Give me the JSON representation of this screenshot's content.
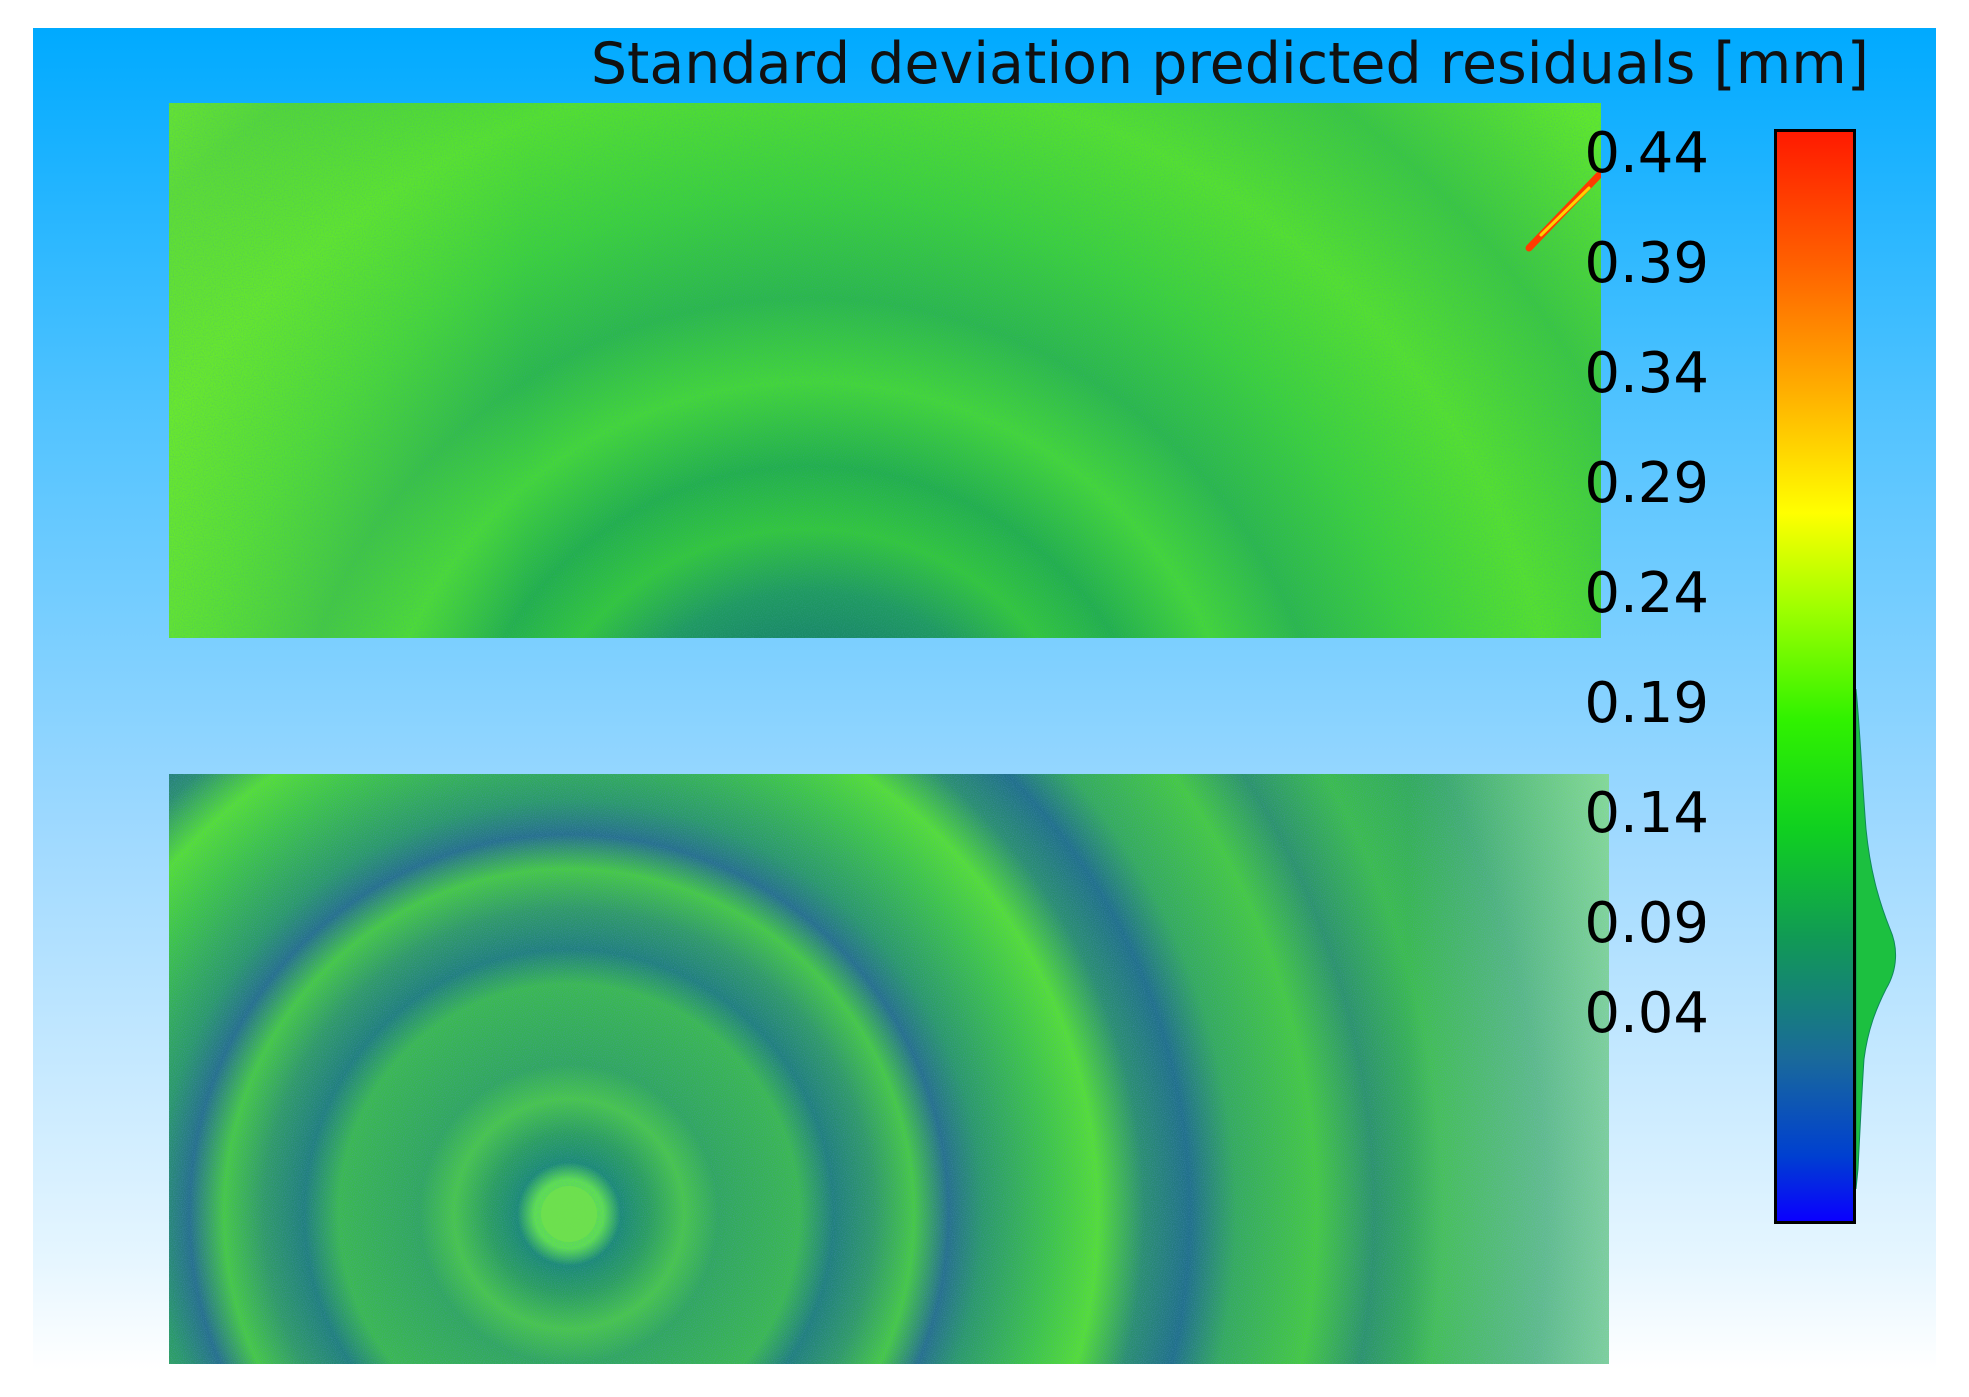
{
  "title": "Standard deviation predicted residuals [mm]",
  "colorbar": {
    "ticks": [
      "0.44",
      "0.39",
      "0.34",
      "0.29",
      "0.24",
      "0.19",
      "0.14",
      "0.09",
      "0.04"
    ],
    "colors": [
      "#0a00ff",
      "#0040d0",
      "#1a6a9a",
      "#119a55",
      "#10d020",
      "#30f200",
      "#9cff00",
      "#ffff00",
      "#ffb000",
      "#ff6000",
      "#ff1a00"
    ]
  },
  "background": {
    "top_color": "#00aaff",
    "bottom_color": "#ffffff"
  }
}
